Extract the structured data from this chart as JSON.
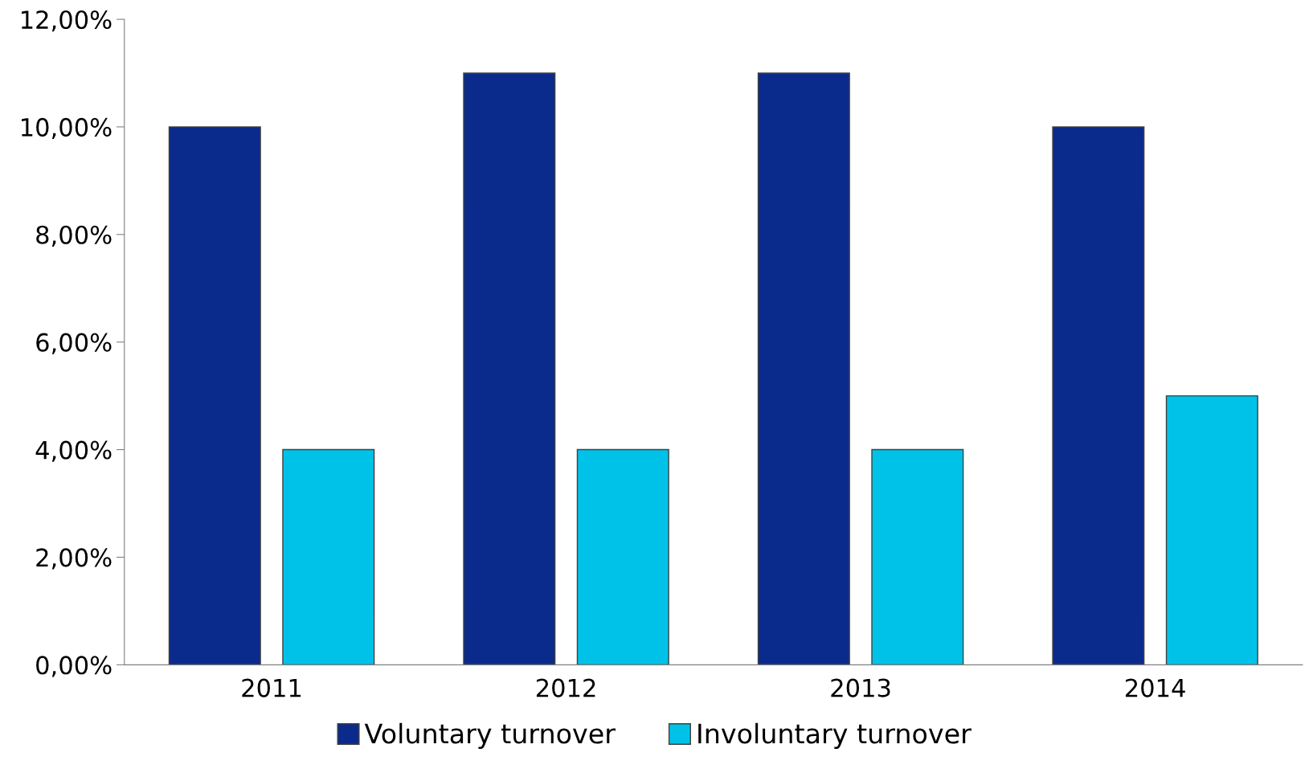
{
  "chart_data": {
    "type": "bar",
    "categories": [
      "2011",
      "2012",
      "2013",
      "2014"
    ],
    "series": [
      {
        "name": "Voluntary turnover",
        "color": "#0a2a8c",
        "values": [
          10,
          11,
          11,
          10
        ]
      },
      {
        "name": "Involuntary turnover",
        "color": "#00c2e8",
        "values": [
          4,
          4,
          4,
          5
        ]
      }
    ],
    "ylim": [
      0,
      12
    ],
    "yticks": [
      {
        "value": 0,
        "label": "0,00%"
      },
      {
        "value": 2,
        "label": "2,00%"
      },
      {
        "value": 4,
        "label": "4,00%"
      },
      {
        "value": 6,
        "label": "6,00%"
      },
      {
        "value": 8,
        "label": "8,00%"
      },
      {
        "value": 10,
        "label": "10,00%"
      },
      {
        "value": 12,
        "label": "12,00%"
      }
    ],
    "grid": false,
    "legend": "bottom"
  }
}
